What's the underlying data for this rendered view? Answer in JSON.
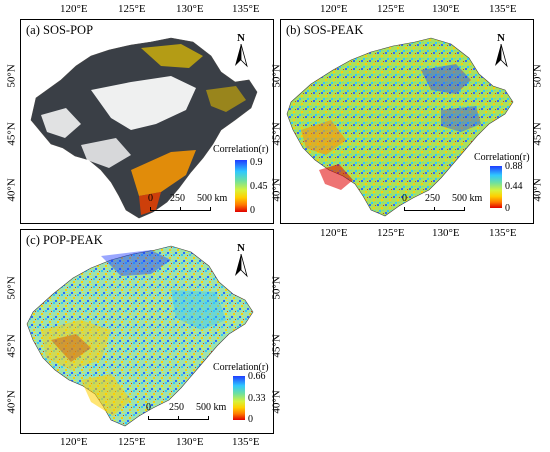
{
  "colors": {
    "low": "#e00000",
    "mid": "#ffd000",
    "mid2": "#6ee0a0",
    "high": "#1f3cff",
    "dark": "#3a3f46",
    "nodata": "#ffffff"
  },
  "top_axis_labels": [
    "120°E",
    "125°E",
    "130°E",
    "135°E"
  ],
  "bottom_axis_labels": [
    "120°E",
    "125°E",
    "130°E",
    "135°E"
  ],
  "lat_labels": [
    "50°N",
    "45°N",
    "40°N"
  ],
  "panels": [
    {
      "id": "a",
      "title": "(a) SOS-POP",
      "legend_title": "Correlation(r)",
      "legend_max": "0.9",
      "legend_mid": "0.45",
      "legend_min": "0",
      "north": "N",
      "scale_labels": [
        "0",
        "250",
        "500 km"
      ]
    },
    {
      "id": "b",
      "title": "(b) SOS-PEAK",
      "legend_title": "Correlation(r)",
      "legend_max": "0.88",
      "legend_mid": "0.44",
      "legend_min": "0",
      "north": "N",
      "scale_labels": [
        "0",
        "250",
        "500 km"
      ]
    },
    {
      "id": "c",
      "title": "(c) POP-PEAK",
      "legend_title": "Correlation(r)",
      "legend_max": "0.66",
      "legend_mid": "0.33",
      "legend_min": "0",
      "north": "N",
      "scale_labels": [
        "0",
        "250",
        "500 km"
      ]
    }
  ]
}
